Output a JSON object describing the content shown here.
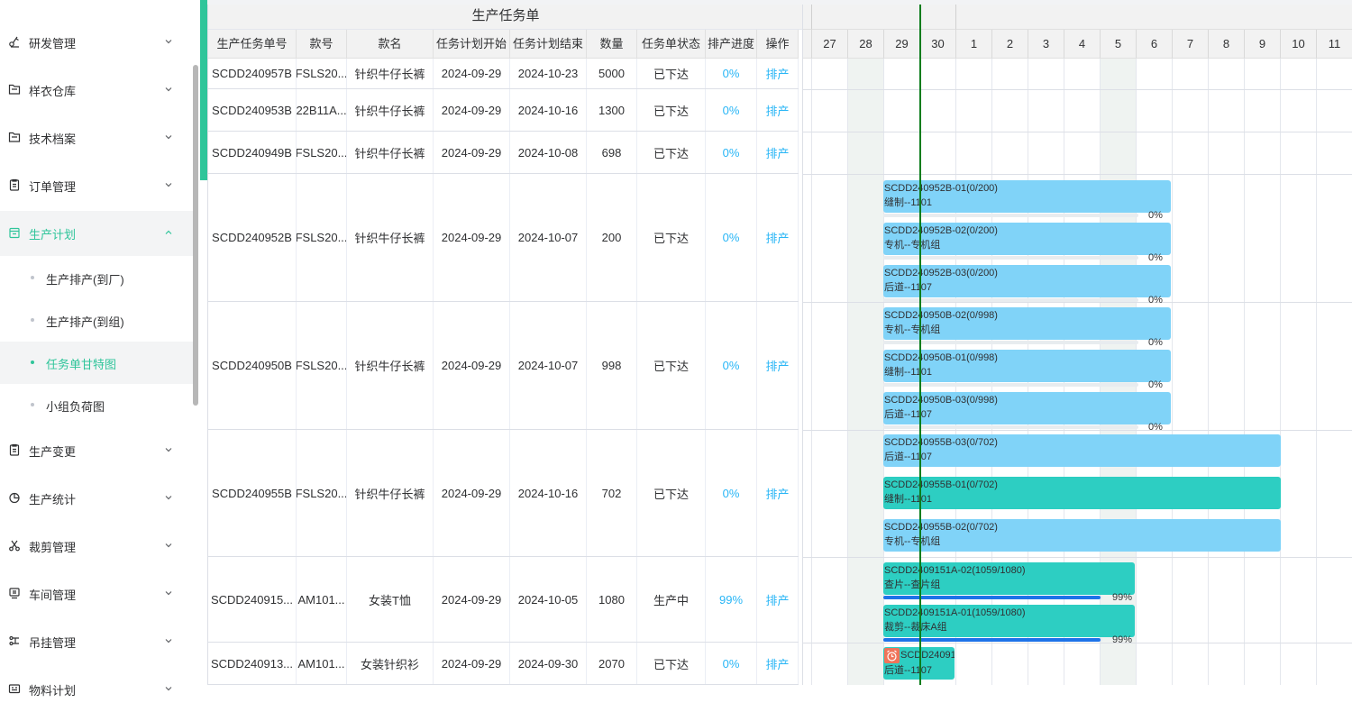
{
  "sidebar": {
    "items": [
      {
        "label": "研发管理",
        "icon": "research-icon"
      },
      {
        "label": "样衣仓库",
        "icon": "folder-icon"
      },
      {
        "label": "技术档案",
        "icon": "folder-icon"
      },
      {
        "label": "订单管理",
        "icon": "clipboard-icon"
      },
      {
        "label": "生产计划",
        "icon": "calendar-icon",
        "active": true
      },
      {
        "label": "生产变更",
        "icon": "clipboard-icon"
      },
      {
        "label": "生产统计",
        "icon": "pie-chart-icon"
      },
      {
        "label": "裁剪管理",
        "icon": "scissors-icon"
      },
      {
        "label": "车间管理",
        "icon": "monitor-icon"
      },
      {
        "label": "吊挂管理",
        "icon": "hanger-icon"
      },
      {
        "label": "物料计划",
        "icon": "card-icon"
      }
    ],
    "subitems": [
      {
        "label": "生产排产(到厂)"
      },
      {
        "label": "生产排产(到组)"
      },
      {
        "label": "任务单甘特图",
        "active": true
      },
      {
        "label": "小组负荷图"
      }
    ]
  },
  "table": {
    "title": "生产任务单",
    "headers": [
      "生产任务单号",
      "款号",
      "款名",
      "任务计划开始",
      "任务计划结束",
      "数量",
      "任务单状态",
      "排产进度",
      "操作"
    ],
    "rows": [
      [
        "SCDD240957B",
        "FSLS20...",
        "针织牛仔长裤",
        "2024-09-29",
        "2024-10-23",
        "5000",
        "已下达",
        "0%",
        "排产"
      ],
      [
        "SCDD240953B",
        "22B11A...",
        "针织牛仔长裤",
        "2024-09-29",
        "2024-10-16",
        "1300",
        "已下达",
        "0%",
        "排产"
      ],
      [
        "SCDD240949B",
        "FSLS20...",
        "针织牛仔长裤",
        "2024-09-29",
        "2024-10-08",
        "698",
        "已下达",
        "0%",
        "排产"
      ],
      [
        "SCDD240952B",
        "FSLS20...",
        "针织牛仔长裤",
        "2024-09-29",
        "2024-10-07",
        "200",
        "已下达",
        "0%",
        "排产"
      ],
      [
        "SCDD240950B",
        "FSLS20...",
        "针织牛仔长裤",
        "2024-09-29",
        "2024-10-07",
        "998",
        "已下达",
        "0%",
        "排产"
      ],
      [
        "SCDD240955B",
        "FSLS20...",
        "针织牛仔长裤",
        "2024-09-29",
        "2024-10-16",
        "702",
        "已下达",
        "0%",
        "排产"
      ],
      [
        "SCDD240915...",
        "AM101...",
        "女装T恤",
        "2024-09-29",
        "2024-10-05",
        "1080",
        "生产中",
        "99%",
        "排产"
      ],
      [
        "SCDD240913...",
        "AM101...",
        "女装针织衫",
        "2024-09-29",
        "2024-09-30",
        "2070",
        "已下达",
        "0%",
        "排产"
      ]
    ]
  },
  "gantt": {
    "days": [
      "27",
      "28",
      "29",
      "30",
      "1",
      "2",
      "3",
      "4",
      "5",
      "6",
      "7",
      "8",
      "9",
      "10",
      "11"
    ],
    "bars": [
      {
        "line1": "SCDD240952B-01(0/200)",
        "line2": "缝制--1101",
        "pct": "0%",
        "progress": 0,
        "color": "blue"
      },
      {
        "line1": "SCDD240952B-02(0/200)",
        "line2": "专机--专机组",
        "pct": "0%",
        "progress": 0,
        "color": "blue"
      },
      {
        "line1": "SCDD240952B-03(0/200)",
        "line2": "后道--1107",
        "pct": "0%",
        "progress": 0,
        "color": "blue"
      },
      {
        "line1": "SCDD240950B-02(0/998)",
        "line2": "专机--专机组",
        "pct": "0%",
        "progress": 0,
        "color": "blue"
      },
      {
        "line1": "SCDD240950B-01(0/998)",
        "line2": "缝制--1101",
        "pct": "0%",
        "progress": 0,
        "color": "blue"
      },
      {
        "line1": "SCDD240950B-03(0/998)",
        "line2": "后道--1107",
        "pct": "0%",
        "progress": 0,
        "color": "blue"
      },
      {
        "line1": "SCDD240955B-03(0/702)",
        "line2": "后道--1107",
        "pct": "",
        "progress": 0,
        "color": "blue"
      },
      {
        "line1": "SCDD240955B-01(0/702)",
        "line2": "缝制--1101",
        "pct": "",
        "progress": 0,
        "color": "teal"
      },
      {
        "line1": "SCDD240955B-02(0/702)",
        "line2": "专机--专机组",
        "pct": "",
        "progress": 0,
        "color": "blue"
      },
      {
        "line1": "SCDD2409151A-02(1059/1080)",
        "line2": "查片--查片组",
        "pct": "99%",
        "progress": 0.99,
        "color": "teal"
      },
      {
        "line1": "SCDD2409151A-01(1059/1080)",
        "line2": "裁剪--裁床A组",
        "pct": "99%",
        "progress": 0.99,
        "color": "teal"
      },
      {
        "line1": "SCDD24091",
        "line2": "后道--1107",
        "pct": "",
        "progress": 0,
        "color": "teal",
        "alarm": true
      }
    ]
  },
  "colors": {
    "accent": "#2fc59a",
    "bar_blue": "#80d3f8",
    "bar_teal": "#2dcec2",
    "progress_fill": "#1e73e8",
    "link": "#29b6f6",
    "today_line": "#0a7d1c"
  }
}
